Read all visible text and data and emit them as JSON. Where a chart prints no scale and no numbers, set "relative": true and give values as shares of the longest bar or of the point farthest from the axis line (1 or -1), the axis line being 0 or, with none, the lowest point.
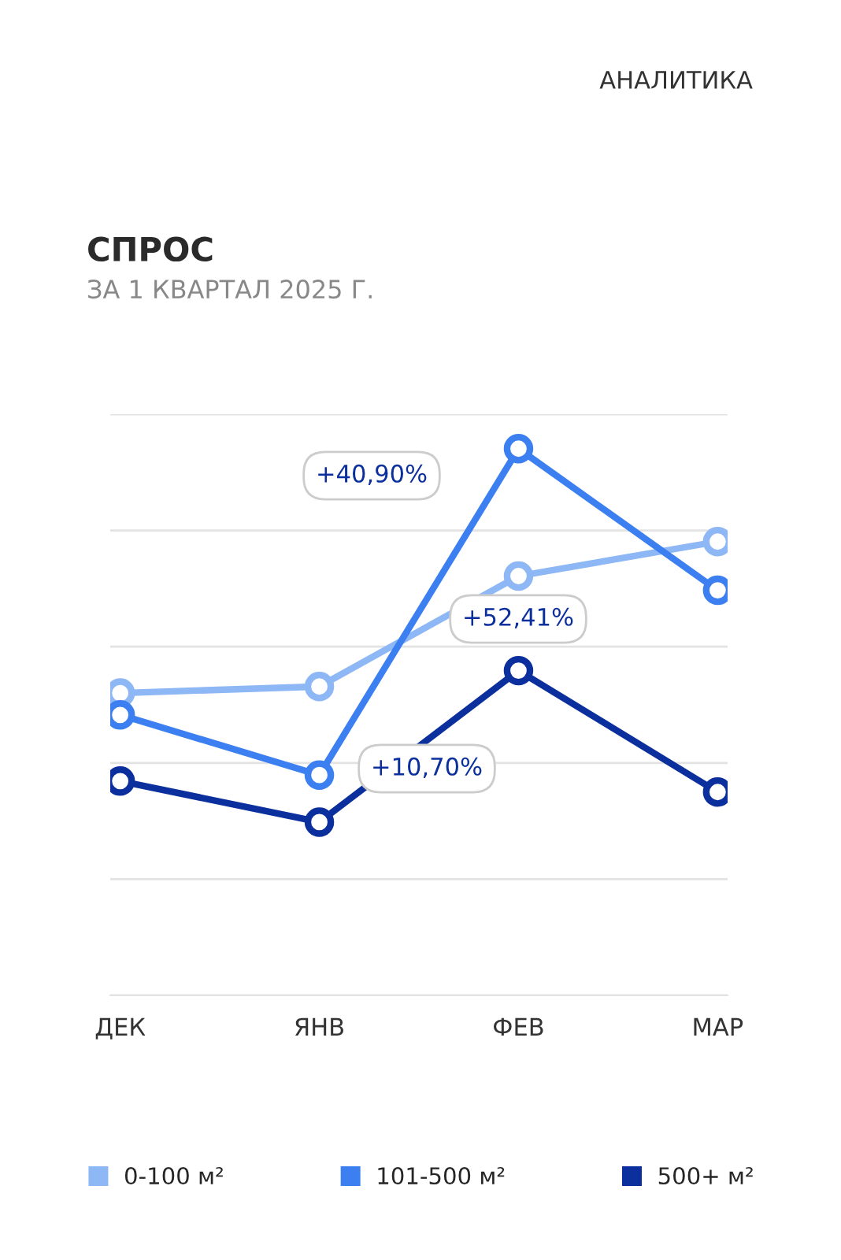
{
  "chart_data": {
    "type": "line",
    "title": "СПРОС",
    "subtitle": "ЗА 1 КВАРТАЛ 2025 Г.",
    "annotations": [
      "АНАЛИТИКА",
      "+40,90%",
      "+52,41%",
      "+10,70%"
    ],
    "categories": [
      "ДЕК",
      "ЯНВ",
      "ФЕВ",
      "МАР"
    ],
    "relative": true,
    "series": [
      {
        "name": "0-100 м²",
        "color": "#8db7f5",
        "values": [
          0.553,
          0.565,
          0.767,
          0.83
        ]
      },
      {
        "name": "101-500 м²",
        "color": "#3b7ff0",
        "values": [
          0.513,
          0.403,
          1.0,
          0.741
        ]
      },
      {
        "name": "500+ м²",
        "color": "#0b2f9c",
        "values": [
          0.392,
          0.317,
          0.594,
          0.372
        ]
      }
    ],
    "grid": "y",
    "legend": "bottom",
    "marker": "circle",
    "line_style": "solid"
  }
}
